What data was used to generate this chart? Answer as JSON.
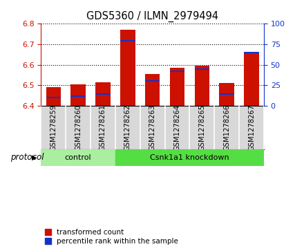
{
  "title": "GDS5360 / ILMN_2979494",
  "samples": [
    "GSM1278259",
    "GSM1278260",
    "GSM1278261",
    "GSM1278262",
    "GSM1278263",
    "GSM1278264",
    "GSM1278265",
    "GSM1278266",
    "GSM1278267"
  ],
  "transformed_count": [
    6.49,
    6.505,
    6.515,
    6.77,
    6.555,
    6.585,
    6.595,
    6.51,
    6.655
  ],
  "percentile_rank": [
    10,
    12,
    14,
    79,
    30,
    42,
    45,
    14,
    65
  ],
  "ylim_left": [
    6.4,
    6.8
  ],
  "ylim_right": [
    0,
    100
  ],
  "yticks_left": [
    6.4,
    6.5,
    6.6,
    6.7,
    6.8
  ],
  "yticks_right": [
    0,
    25,
    50,
    75,
    100
  ],
  "bar_color_red": "#cc1100",
  "bar_color_blue": "#1133cc",
  "base_value": 6.4,
  "groups": [
    {
      "label": "control",
      "start": 0,
      "end": 3,
      "color": "#aaeea0"
    },
    {
      "label": "Csnk1a1 knockdown",
      "start": 3,
      "end": 9,
      "color": "#55dd44"
    }
  ],
  "protocol_label": "protocol",
  "legend_items": [
    {
      "label": "transformed count",
      "color": "#cc1100"
    },
    {
      "label": "percentile rank within the sample",
      "color": "#1133cc"
    }
  ],
  "tick_color_left": "#cc1100",
  "tick_color_right": "#1133cc",
  "bar_width": 0.6,
  "gray_bg": "#d8d8d8"
}
